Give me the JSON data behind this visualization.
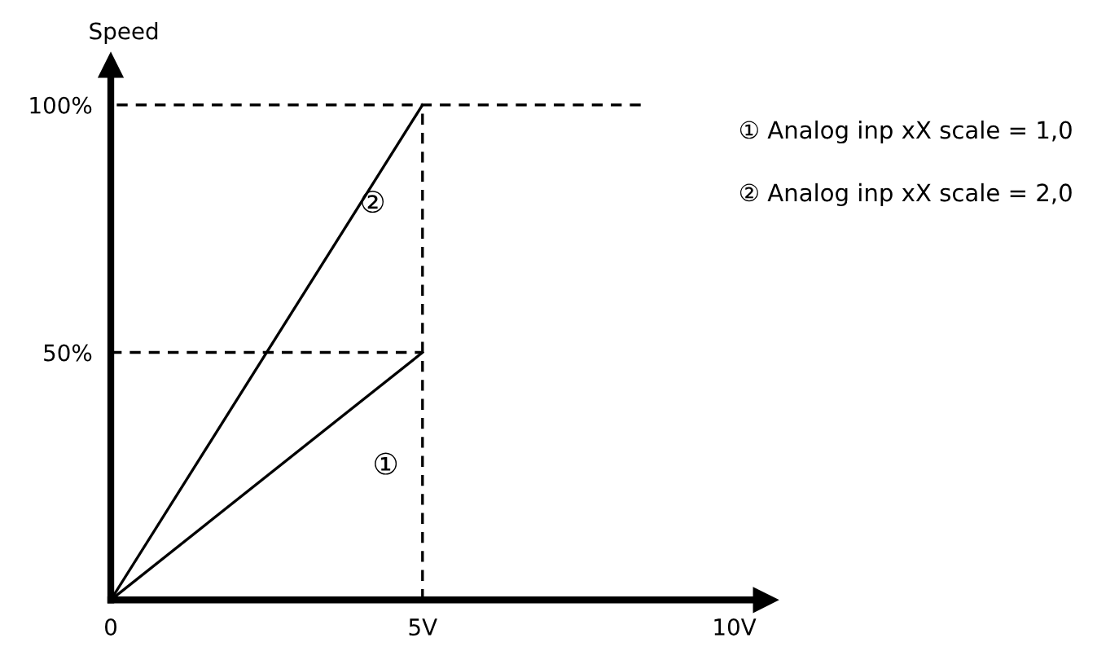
{
  "chart_data": {
    "type": "line",
    "ylabel": "Speed",
    "xlim": [
      0,
      10.5
    ],
    "ylim": [
      0,
      108
    ],
    "xticks": [
      0,
      {
        "value": 5,
        "label": "5V"
      },
      {
        "value": 10,
        "label": "10V"
      }
    ],
    "yticks": [
      {
        "value": 50,
        "label": "50%"
      },
      {
        "value": 100,
        "label": "100%"
      }
    ],
    "grid": false,
    "legend": false,
    "marker": "none",
    "series": [
      {
        "color": "#000000",
        "x": [
          0,
          5
        ],
        "values": [
          0,
          50
        ],
        "line_style": "solid"
      },
      {
        "color": "#000000",
        "x": [
          0,
          5
        ],
        "values": [
          0,
          100
        ],
        "line_style": "solid"
      },
      {
        "color": "#000000",
        "x": [
          8.5,
          0
        ],
        "values": [
          100,
          100
        ],
        "line_style": "dashed"
      },
      {
        "color": "#000000",
        "x": [
          0,
          5
        ],
        "values": [
          50,
          50
        ],
        "line_style": "dashed"
      },
      {
        "color": "#000000",
        "x": [
          5,
          5
        ],
        "values": [
          0,
          100
        ],
        "line_style": "dashed"
      }
    ],
    "annotations": [
      "②",
      "①",
      "① Analog inp xX scale = 1,0",
      "② Analog inp xX scale = 2,0"
    ]
  }
}
